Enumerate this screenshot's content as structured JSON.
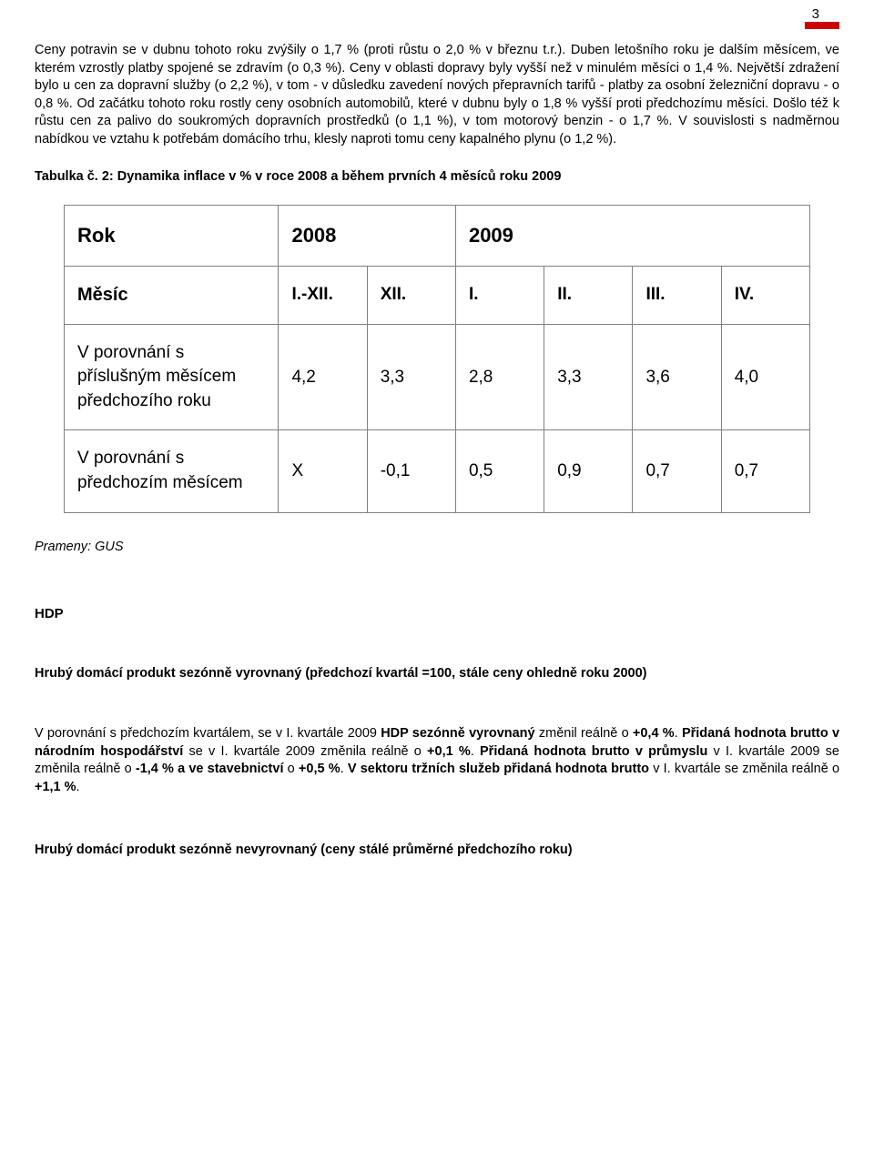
{
  "page_number": "3",
  "paragraph1": "Ceny potravin se v dubnu tohoto roku zvýšily o 1,7 % (proti růstu o 2,0 % v březnu t.r.). Duben letošního roku je dalším měsícem, ve kterém vzrostly platby spojené se zdravím (o 0,3 %). Ceny v oblasti dopravy byly vyšší než v minulém měsíci o 1,4 %. Největší zdražení bylo u cen za dopravní služby (o 2,2 %), v tom - v důsledku zavedení nových přepravních tarifů - platby za osobní železniční dopravu - o 0,8 %. Od začátku tohoto roku rostly ceny osobních automobilů, které v dubnu byly o 1,8 % vyšší proti předchozímu měsíci. Došlo též k růstu cen za palivo do soukromých dopravních prostředků (o 1,1 %), v tom motorový benzin - o 1,7 %. V souvislosti s nadměrnou nabídkou ve vztahu k potřebám domácího trhu, klesly naproti tomu ceny kapalného plynu (o 1,2 %).",
  "table_caption": "Tabulka č. 2: Dynamika inflace v % v roce 2008 a během prvních 4 měsíců roku 2009",
  "table": {
    "header": {
      "label": "Rok",
      "y2008": "2008",
      "y2009": "2009"
    },
    "months": {
      "label": "Měsíc",
      "cols": [
        "I.-XII.",
        "XII.",
        "I.",
        "II.",
        "III.",
        "IV."
      ]
    },
    "row1": {
      "label": "V porovnání s příslušným měsícem předchozího roku",
      "vals": [
        "4,2",
        "3,3",
        "2,8",
        "3,3",
        "3,6",
        "4,0"
      ]
    },
    "row2": {
      "label": "V porovnání s předchozím měsícem",
      "vals": [
        "X",
        "-0,1",
        "0,5",
        "0,9",
        "0,7",
        "0,7"
      ]
    }
  },
  "source": "Prameny: GUS",
  "hdp_heading": "HDP",
  "subheading1": "Hrubý domácí produkt sezónně vyrovnaný (předchozí kvartál =100, stále ceny ohledně roku 2000)",
  "para2_pre1": "V porovnání s předchozím kvartálem, se v I. kvartále 2009 ",
  "para2_b1": "HDP sezónně vyrovnaný",
  "para2_t1": " změnil reálně o ",
  "para2_b1v": "+0,4 %",
  "para2_t1b": ". ",
  "para2_b2": "Přidaná hodnota brutto v národním hospodářství",
  "para2_t2": " se v I. kvartále 2009 změnila reálně o ",
  "para2_b2v": "+0,1 %",
  "para2_t2b": ". ",
  "para2_b3": "Přidaná hodnota brutto v průmyslu",
  "para2_t3": "  v I. kvartále 2009 se změnila reálně o ",
  "para2_b3v": "-1,4 % a ve stavebnictví",
  "para2_t3b": " o ",
  "para2_b3v2": "+0,5 %",
  "para2_t3c": ". ",
  "para2_b4": "V sektoru tržních služeb přidaná hodnota brutto",
  "para2_t4": " v I. kvartále se změnila reálně o ",
  "para2_b4v": "+1,1 %",
  "para2_t4b": ".",
  "last_heading": "Hrubý domácí produkt sezónně nevyrovnaný (ceny stálé průměrné předchozího roku)"
}
